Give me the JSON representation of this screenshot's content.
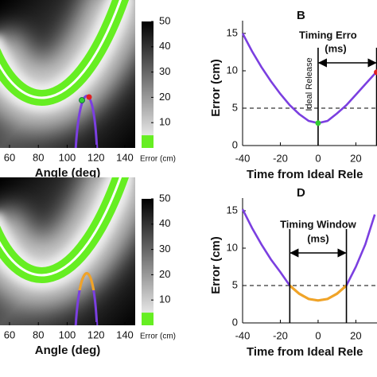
{
  "chart_data": [
    {
      "type": "heatmap",
      "xlabel": "Angle (deg)",
      "xlim": [
        53.4,
        147.2
      ],
      "xticks": [
        60,
        80,
        100,
        120,
        140
      ],
      "colorbar": {
        "label": "Error (cm)",
        "lim": [
          0,
          50
        ],
        "ticks": [
          10,
          20,
          30,
          40,
          50
        ],
        "highlight_below": 5,
        "highlight_color": "#66ee22"
      }
    },
    {
      "type": "line",
      "panel": "B",
      "xlabel": "Time from Ideal Rele",
      "ylabel": "Error (cm)",
      "x": [
        -40,
        -35,
        -30,
        -25,
        -20,
        -15,
        -10,
        -5,
        0,
        5,
        10,
        15,
        20,
        25,
        30
      ],
      "series": [
        {
          "color": "#7b3fe0",
          "values": [
            15,
            12.6,
            10.5,
            8.6,
            6.9,
            5.4,
            4.2,
            3.3,
            3.0,
            3.3,
            4.3,
            5.4,
            6.8,
            8.2,
            9.6
          ]
        }
      ],
      "xlim": [
        -40,
        31.2
      ],
      "xticks": [
        -40,
        -20,
        0,
        20
      ],
      "ylim": [
        0,
        16.7
      ],
      "yticks": [
        0,
        5,
        10,
        15
      ],
      "threshold": 5,
      "vlines": [
        0,
        31
      ],
      "points": [
        {
          "x": 0,
          "y": 3.0,
          "color": "#33cc33"
        },
        {
          "x": 31,
          "y": 9.8,
          "color": "#e02020"
        }
      ],
      "annotations": [
        "Timing Erro",
        "(ms)",
        "Ideal Release"
      ]
    },
    {
      "type": "heatmap",
      "xlabel": "Angle (deg)",
      "xlim": [
        53.4,
        147.2
      ],
      "xticks": [
        60,
        80,
        100,
        120,
        140
      ],
      "colorbar": {
        "label": "Error (cm)",
        "lim": [
          0,
          50
        ],
        "ticks": [
          10,
          20,
          30,
          40,
          50
        ],
        "highlight_below": 5,
        "highlight_color": "#66ee22"
      }
    },
    {
      "type": "line",
      "panel": "D",
      "xlabel": "Time from Ideal Rele",
      "ylabel": "Error (cm)",
      "x": [
        -40,
        -35,
        -30,
        -25,
        -20,
        -15,
        -10,
        -5,
        0,
        5,
        10,
        15,
        20,
        25,
        30
      ],
      "series": [
        {
          "color": "#7b3fe0",
          "values": [
            15.2,
            12.7,
            10.5,
            8.5,
            6.8,
            5.0,
            3.9,
            3.2,
            3.0,
            3.2,
            3.9,
            5.0,
            7.5,
            10.5,
            14.5
          ]
        },
        {
          "color": "#f0a428",
          "values": [
            null,
            null,
            null,
            null,
            null,
            5.0,
            3.9,
            3.2,
            3.0,
            3.2,
            3.9,
            5.0,
            null,
            null,
            null
          ]
        }
      ],
      "xlim": [
        -40,
        31.2
      ],
      "xticks": [
        -40,
        -20,
        0,
        20
      ],
      "ylim": [
        0,
        16.7
      ],
      "yticks": [
        0,
        5,
        10,
        15
      ],
      "threshold": 5,
      "vlines": [
        -15,
        15
      ],
      "points": [],
      "annotations": [
        "Timing Window",
        "(ms)"
      ]
    }
  ]
}
